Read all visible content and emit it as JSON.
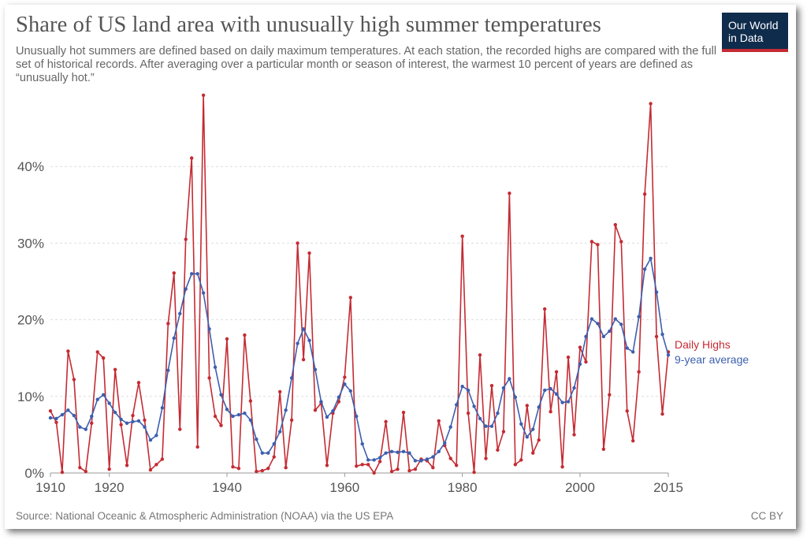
{
  "header": {
    "title": "Share of US land area with unusually high summer temperatures",
    "subtitle": "Unusually hot summers are defined based on daily maximum temperatures. At each station, the recorded highs are compared with the full set of historical records. After averaging over a particular month or season of interest, the warmest 10 percent of years are defined as “unusually hot.”"
  },
  "logo": {
    "line1": "Our World",
    "line2": "in Data"
  },
  "footer": {
    "source": "Source: National Oceanic & Atmospheric Administration (NOAA) via the US EPA",
    "license": "CC BY"
  },
  "colors": {
    "daily": "#c42b33",
    "average": "#3d5fae",
    "grid": "#dddddd",
    "logo_bg": "#0f2c4c"
  },
  "chart_data": {
    "type": "line",
    "title": "Share of US land area with unusually high summer temperatures",
    "xlabel": "",
    "ylabel": "",
    "xlim": [
      1910,
      2015
    ],
    "ylim": [
      0,
      50
    ],
    "x_ticks": [
      1910,
      1920,
      1940,
      1960,
      1980,
      2000,
      2015
    ],
    "x_tick_labels": [
      "1910",
      "1920",
      "1940",
      "1960",
      "1980",
      "2000",
      "2015"
    ],
    "y_ticks": [
      0,
      10,
      20,
      30,
      40
    ],
    "y_tick_labels": [
      "0%",
      "10%",
      "20%",
      "30%",
      "40%"
    ],
    "grid": "horizontal",
    "series": [
      {
        "name": "Daily Highs",
        "color": "#c42b33",
        "x": [
          1910,
          1911,
          1912,
          1913,
          1914,
          1915,
          1916,
          1917,
          1918,
          1919,
          1920,
          1921,
          1922,
          1923,
          1924,
          1925,
          1926,
          1927,
          1928,
          1929,
          1930,
          1931,
          1932,
          1933,
          1934,
          1935,
          1936,
          1937,
          1938,
          1939,
          1940,
          1941,
          1942,
          1943,
          1944,
          1945,
          1946,
          1947,
          1948,
          1949,
          1950,
          1951,
          1952,
          1953,
          1954,
          1955,
          1956,
          1957,
          1958,
          1959,
          1960,
          1961,
          1962,
          1963,
          1964,
          1965,
          1966,
          1967,
          1968,
          1969,
          1970,
          1971,
          1972,
          1973,
          1974,
          1975,
          1976,
          1977,
          1978,
          1979,
          1980,
          1981,
          1982,
          1983,
          1984,
          1985,
          1986,
          1987,
          1988,
          1989,
          1990,
          1991,
          1992,
          1993,
          1994,
          1995,
          1996,
          1997,
          1998,
          1999,
          2000,
          2001,
          2002,
          2003,
          2004,
          2005,
          2006,
          2007,
          2008,
          2009,
          2010,
          2011,
          2012,
          2013,
          2014,
          2015
        ],
        "y": [
          8.1,
          6.6,
          0.1,
          15.9,
          12.2,
          0.7,
          0.2,
          6.5,
          15.8,
          15.0,
          0.5,
          13.5,
          6.3,
          1.0,
          7.5,
          11.8,
          6.9,
          0.4,
          1.1,
          1.8,
          19.5,
          26.1,
          5.7,
          30.5,
          41.1,
          3.4,
          49.3,
          12.4,
          7.4,
          6.2,
          17.5,
          0.8,
          0.6,
          18.0,
          9.4,
          0.2,
          0.3,
          0.6,
          2.1,
          10.6,
          0.7,
          6.9,
          30.0,
          14.8,
          28.7,
          8.2,
          9.1,
          1.0,
          7.8,
          9.3,
          12.5,
          22.9,
          0.9,
          1.1,
          1.1,
          0.0,
          1.5,
          6.7,
          0.2,
          0.5,
          7.9,
          0.3,
          0.5,
          1.8,
          1.6,
          0.7,
          6.8,
          3.6,
          1.9,
          1.0,
          30.9,
          7.8,
          0.1,
          15.4,
          1.9,
          11.4,
          3.0,
          5.4,
          36.5,
          1.1,
          1.7,
          8.8,
          2.6,
          4.3,
          21.4,
          8.0,
          13.2,
          0.8,
          15.1,
          5.0,
          16.4,
          14.5,
          30.2,
          29.8,
          3.1,
          10.2,
          32.4,
          30.2,
          8.1,
          4.2,
          13.2,
          36.4,
          48.2,
          17.8,
          7.7,
          15.8
        ]
      },
      {
        "name": "9-year average",
        "color": "#3d5fae",
        "x": [
          1910,
          1911,
          1912,
          1913,
          1914,
          1915,
          1916,
          1917,
          1918,
          1919,
          1920,
          1921,
          1922,
          1923,
          1924,
          1925,
          1926,
          1927,
          1928,
          1929,
          1930,
          1931,
          1932,
          1933,
          1934,
          1935,
          1936,
          1937,
          1938,
          1939,
          1940,
          1941,
          1942,
          1943,
          1944,
          1945,
          1946,
          1947,
          1948,
          1949,
          1950,
          1951,
          1952,
          1953,
          1954,
          1955,
          1956,
          1957,
          1958,
          1959,
          1960,
          1961,
          1962,
          1963,
          1964,
          1965,
          1966,
          1967,
          1968,
          1969,
          1970,
          1971,
          1972,
          1973,
          1974,
          1975,
          1976,
          1977,
          1978,
          1979,
          1980,
          1981,
          1982,
          1983,
          1984,
          1985,
          1986,
          1987,
          1988,
          1989,
          1990,
          1991,
          1992,
          1993,
          1994,
          1995,
          1996,
          1997,
          1998,
          1999,
          2000,
          2001,
          2002,
          2003,
          2004,
          2005,
          2006,
          2007,
          2008,
          2009,
          2010,
          2011,
          2012,
          2013,
          2014,
          2015
        ],
        "y": [
          7.2,
          7.1,
          7.6,
          8.2,
          7.5,
          6.0,
          5.7,
          7.4,
          9.6,
          10.2,
          9.1,
          7.9,
          7.0,
          6.5,
          6.7,
          6.8,
          6.0,
          4.3,
          4.9,
          8.5,
          13.4,
          17.6,
          20.8,
          24.0,
          26.0,
          26.0,
          23.5,
          18.8,
          13.8,
          10.2,
          8.3,
          7.4,
          7.6,
          7.8,
          6.9,
          4.4,
          2.6,
          2.6,
          3.8,
          5.4,
          8.2,
          12.4,
          16.9,
          18.8,
          17.3,
          13.5,
          9.3,
          7.3,
          8.1,
          9.9,
          11.6,
          10.7,
          7.4,
          3.8,
          1.7,
          1.7,
          2.0,
          2.6,
          2.8,
          2.7,
          2.8,
          2.6,
          1.6,
          1.6,
          1.8,
          2.1,
          2.8,
          3.9,
          6.0,
          8.9,
          11.3,
          10.8,
          8.7,
          7.1,
          6.1,
          6.1,
          7.8,
          11.1,
          12.3,
          9.9,
          6.4,
          4.7,
          5.7,
          8.6,
          10.8,
          11.0,
          10.3,
          9.2,
          9.3,
          11.1,
          14.2,
          17.8,
          20.1,
          19.5,
          17.8,
          18.5,
          20.1,
          19.4,
          16.3,
          15.8,
          20.4,
          26.6,
          28.0,
          23.6,
          18.1,
          15.4
        ]
      }
    ]
  }
}
